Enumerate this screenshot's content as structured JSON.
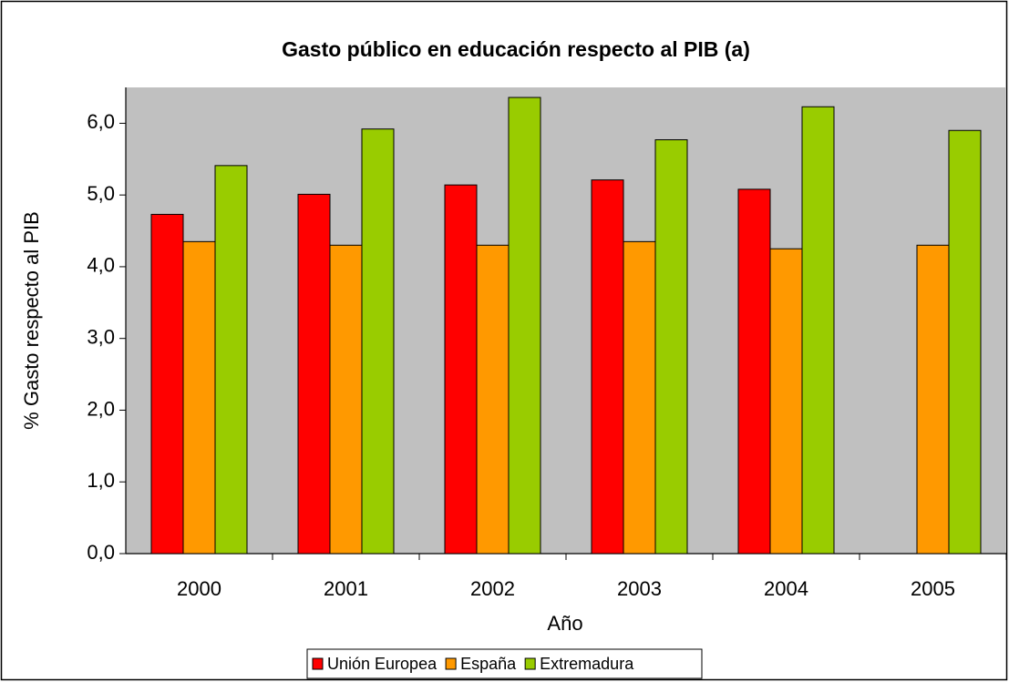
{
  "chart_data": {
    "type": "bar",
    "title": "Gasto público en educación respecto al PIB (a)",
    "x_label": "Año",
    "y_label": "% Gasto respecto al PIB",
    "categories": [
      "2000",
      "2001",
      "2002",
      "2003",
      "2004",
      "2005"
    ],
    "series": [
      {
        "name": "Unión Europea",
        "color": "#ff0000",
        "values": [
          4.73,
          5.01,
          5.14,
          5.21,
          5.08,
          null
        ]
      },
      {
        "name": "España",
        "color": "#ff9900",
        "values": [
          4.35,
          4.3,
          4.3,
          4.35,
          4.25,
          4.3
        ]
      },
      {
        "name": "Extremadura",
        "color": "#99cc00",
        "values": [
          5.41,
          5.92,
          6.36,
          5.77,
          6.23,
          5.9
        ]
      }
    ],
    "ylim": [
      0,
      6.5
    ],
    "yticks": [
      {
        "value": 0,
        "label": "0,0"
      },
      {
        "value": 1,
        "label": "1,0"
      },
      {
        "value": 2,
        "label": "2,0"
      },
      {
        "value": 3,
        "label": "3,0"
      },
      {
        "value": 4,
        "label": "4,0"
      },
      {
        "value": 5,
        "label": "5,0"
      },
      {
        "value": 6,
        "label": "6,0"
      }
    ],
    "plot_background": "#c0c0c0",
    "legend": "bottom"
  }
}
